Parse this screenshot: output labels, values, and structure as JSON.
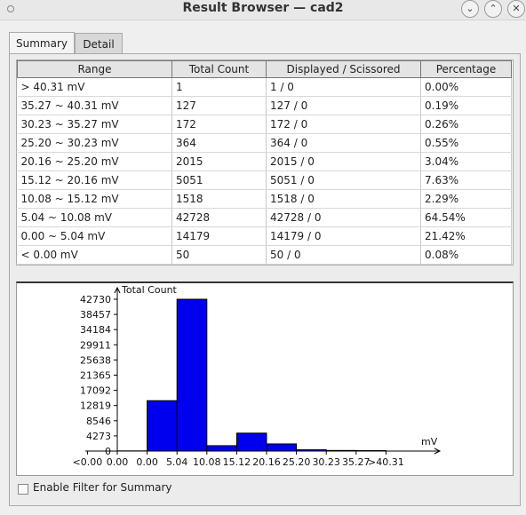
{
  "window": {
    "title": "Result Browser — cad2"
  },
  "tabs": [
    {
      "label": "Summary"
    },
    {
      "label": "Detail"
    }
  ],
  "table": {
    "headers": [
      "Range",
      "Total Count",
      "Displayed / Scissored",
      "Percentage"
    ],
    "rows": [
      [
        "> 40.31 mV",
        "1",
        "1 / 0",
        "0.00%"
      ],
      [
        "35.27 ~ 40.31 mV",
        "127",
        "127 / 0",
        "0.19%"
      ],
      [
        "30.23 ~ 35.27 mV",
        "172",
        "172 / 0",
        "0.26%"
      ],
      [
        "25.20 ~ 30.23 mV",
        "364",
        "364 / 0",
        "0.55%"
      ],
      [
        "20.16 ~ 25.20 mV",
        "2015",
        "2015 / 0",
        "3.04%"
      ],
      [
        "15.12 ~ 20.16 mV",
        "5051",
        "5051 / 0",
        "7.63%"
      ],
      [
        "10.08 ~ 15.12 mV",
        "1518",
        "1518 / 0",
        "2.29%"
      ],
      [
        "5.04 ~ 10.08 mV",
        "42728",
        "42728 / 0",
        "64.54%"
      ],
      [
        "0.00 ~ 5.04 mV",
        "14179",
        "14179 / 0",
        "21.42%"
      ],
      [
        "< 0.00 mV",
        "50",
        "50 / 0",
        "0.08%"
      ]
    ]
  },
  "chart_data": {
    "type": "bar",
    "ylabel": "Total Count",
    "xlabel": "mV",
    "x_ticks": [
      "<0.00",
      "0.00",
      "0.00",
      "5.04",
      "10.08",
      "15.12",
      "20.16",
      "25.20",
      "30.23",
      "35.27",
      ">40.31"
    ],
    "y_ticks": [
      "42730",
      "38457",
      "34184",
      "29911",
      "25638",
      "21365",
      "17092",
      "12819",
      "8546",
      "4273",
      "0"
    ],
    "ylim": [
      0,
      42730
    ],
    "values": [
      50,
      14179,
      42728,
      1518,
      5051,
      2015,
      364,
      172,
      127,
      1
    ],
    "bar_color": "#0000ee"
  },
  "filter": {
    "label": "Enable Filter for Summary",
    "checked": false
  }
}
